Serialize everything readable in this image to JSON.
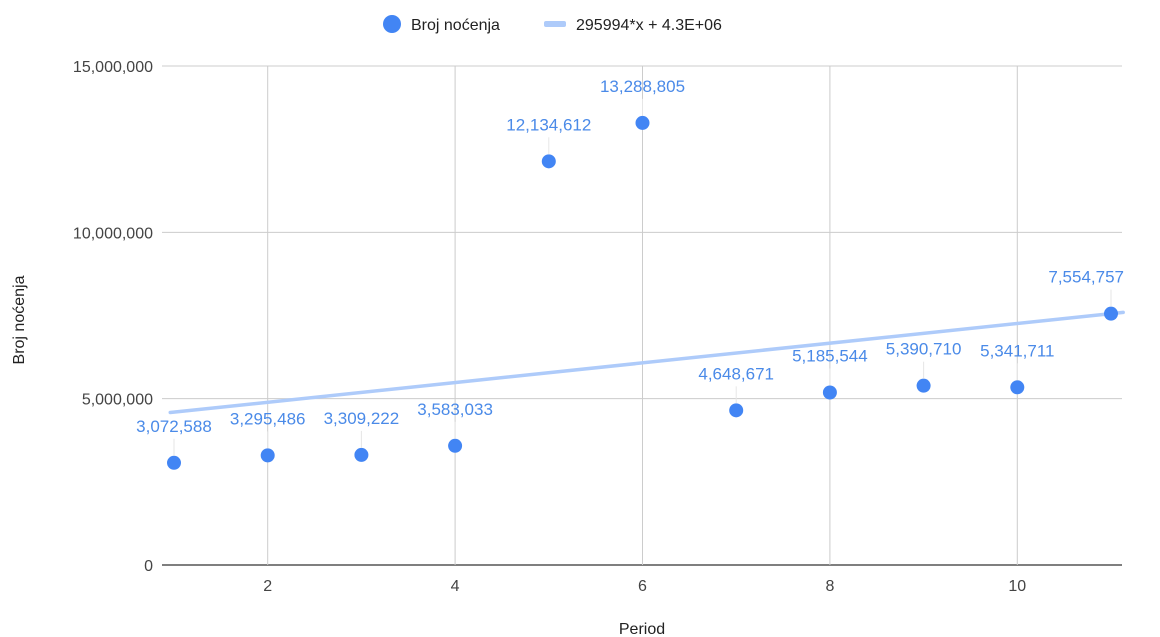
{
  "chart_data": {
    "type": "scatter",
    "title": "",
    "xlabel": "Period",
    "ylabel": "Broj noćenja",
    "xlim": [
      1,
      11
    ],
    "ylim": [
      0,
      15000000
    ],
    "x_ticks": [
      2,
      4,
      6,
      8,
      10
    ],
    "x_tick_labels": [
      "2",
      "4",
      "6",
      "8",
      "10"
    ],
    "y_ticks": [
      0,
      5000000,
      10000000,
      15000000
    ],
    "y_tick_labels": [
      "0",
      "5,000,000",
      "10,000,000",
      "15,000,000"
    ],
    "grid": true,
    "legend_position": "top",
    "series": [
      {
        "name": "Broj noćenja",
        "color": "#4285f4",
        "x": [
          1,
          2,
          3,
          4,
          5,
          6,
          7,
          8,
          9,
          10,
          11
        ],
        "y": [
          3072588,
          3295486,
          3309222,
          3583033,
          12134612,
          13288805,
          4648671,
          5185544,
          5390710,
          5341711,
          7554757
        ],
        "data_labels": [
          "3,072,588",
          "3,295,486",
          "3,309,222",
          "3,583,033",
          "12,134,612",
          "13,288,805",
          "4,648,671",
          "5,185,544",
          "5,390,710",
          "5,341,711",
          "7,554,757"
        ]
      }
    ],
    "trendline": {
      "name": "295994*x + 4.3E+06",
      "color": "#aecbfa",
      "slope": 295994,
      "intercept": 4300000
    }
  }
}
